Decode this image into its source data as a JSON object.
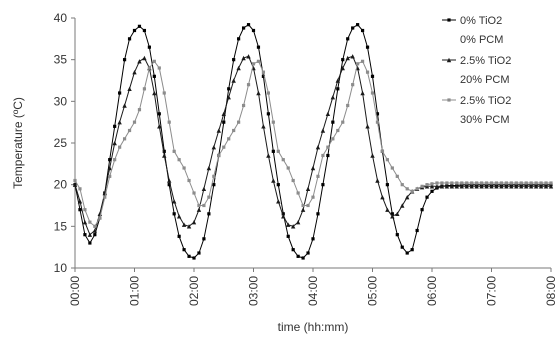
{
  "chart_data": {
    "type": "line",
    "xlabel": "time (hh:mm)",
    "ylabel": "Temperature (ºC)",
    "ylim": [
      10,
      40
    ],
    "xlim_minutes": [
      0,
      480
    ],
    "yticks": [
      10,
      15,
      20,
      25,
      30,
      35,
      40
    ],
    "xticks": [
      "00:00",
      "01:00",
      "02:00",
      "03:00",
      "04:00",
      "05:00",
      "06:00",
      "07:00",
      "08:00"
    ],
    "grid": false,
    "legend_position": "top-right",
    "series": [
      {
        "name_lines": [
          "0%   TiO2",
          "0%   PCM"
        ],
        "marker": "square",
        "color": "#000000",
        "x": [
          "00:00",
          "00:05",
          "00:10",
          "00:15",
          "00:20",
          "00:25",
          "00:30",
          "00:35",
          "00:40",
          "00:45",
          "00:50",
          "00:55",
          "01:00",
          "01:05",
          "01:10",
          "01:15",
          "01:20",
          "01:25",
          "01:30",
          "01:35",
          "01:40",
          "01:45",
          "01:50",
          "01:55",
          "02:00",
          "02:05",
          "02:10",
          "02:15",
          "02:20",
          "02:25",
          "02:30",
          "02:35",
          "02:40",
          "02:45",
          "02:50",
          "02:55",
          "03:00",
          "03:05",
          "03:10",
          "03:15",
          "03:20",
          "03:25",
          "03:30",
          "03:35",
          "03:40",
          "03:45",
          "03:50",
          "03:55",
          "04:00",
          "04:05",
          "04:10",
          "04:15",
          "04:20",
          "04:25",
          "04:30",
          "04:35",
          "04:40",
          "04:45",
          "04:50",
          "04:55",
          "05:00",
          "05:05",
          "05:10",
          "05:15",
          "05:20",
          "05:25",
          "05:30",
          "05:35",
          "05:40",
          "05:45",
          "05:50",
          "05:55",
          "06:00",
          "06:05",
          "06:10",
          "06:15",
          "06:20",
          "06:25",
          "06:30",
          "06:35",
          "06:40",
          "06:45",
          "06:50",
          "06:55",
          "07:00",
          "07:05",
          "07:10",
          "07:15",
          "07:20",
          "07:25",
          "07:30",
          "07:35",
          "07:40",
          "07:45",
          "07:50",
          "07:55",
          "08:00"
        ],
        "y": [
          20,
          17,
          14,
          13,
          14,
          16,
          19,
          23,
          27,
          31,
          35,
          37.5,
          38.5,
          39,
          38.5,
          36.5,
          33,
          28.5,
          24,
          20,
          16.5,
          13.8,
          12.2,
          11.4,
          11.2,
          11.8,
          13.5,
          16.5,
          20,
          23.5,
          27.5,
          31.5,
          35,
          37.5,
          38.8,
          39.2,
          38.5,
          36.5,
          33,
          28.5,
          24,
          20,
          16.5,
          13.8,
          12.2,
          11.4,
          11.2,
          11.8,
          13.5,
          16.5,
          20,
          23.5,
          27.5,
          31.5,
          35,
          37.5,
          38.8,
          39.2,
          38.5,
          36.5,
          33,
          28.5,
          24,
          20,
          16.5,
          14,
          12.5,
          11.8,
          12.2,
          14.5,
          17,
          18.5,
          19.2,
          19.6,
          19.8,
          19.9,
          19.9,
          19.9,
          20,
          20,
          20,
          20,
          20,
          20,
          20,
          20,
          20,
          20,
          20,
          20,
          20,
          20,
          20,
          20,
          20,
          20,
          20
        ]
      },
      {
        "name_lines": [
          "2.5% TiO2",
          "20%  PCM"
        ],
        "marker": "triangle",
        "color": "#1a1a1a",
        "x": [
          "00:00",
          "00:05",
          "00:10",
          "00:15",
          "00:20",
          "00:25",
          "00:30",
          "00:35",
          "00:40",
          "00:45",
          "00:50",
          "00:55",
          "01:00",
          "01:05",
          "01:10",
          "01:15",
          "01:20",
          "01:25",
          "01:30",
          "01:35",
          "01:40",
          "01:45",
          "01:50",
          "01:55",
          "02:00",
          "02:05",
          "02:10",
          "02:15",
          "02:20",
          "02:25",
          "02:30",
          "02:35",
          "02:40",
          "02:45",
          "02:50",
          "02:55",
          "03:00",
          "03:05",
          "03:10",
          "03:15",
          "03:20",
          "03:25",
          "03:30",
          "03:35",
          "03:40",
          "03:45",
          "03:50",
          "03:55",
          "04:00",
          "04:05",
          "04:10",
          "04:15",
          "04:20",
          "04:25",
          "04:30",
          "04:35",
          "04:40",
          "04:45",
          "04:50",
          "04:55",
          "05:00",
          "05:05",
          "05:10",
          "05:15",
          "05:20",
          "05:25",
          "05:30",
          "05:35",
          "05:40",
          "05:45",
          "05:50",
          "05:55",
          "06:00",
          "06:05",
          "06:10",
          "06:15",
          "06:20",
          "06:25",
          "06:30",
          "06:35",
          "06:40",
          "06:45",
          "06:50",
          "06:55",
          "07:00",
          "07:05",
          "07:10",
          "07:15",
          "07:20",
          "07:25",
          "07:30",
          "07:35",
          "07:40",
          "07:45",
          "07:50",
          "07:55",
          "08:00"
        ],
        "y": [
          20,
          18,
          15.5,
          14,
          14.5,
          16.5,
          19,
          22,
          25,
          27.5,
          29.5,
          31.5,
          33.5,
          34.8,
          35.2,
          34,
          31,
          27,
          23.5,
          20.5,
          18,
          16.2,
          15.2,
          15,
          15.5,
          17,
          19.5,
          22,
          24.5,
          26.5,
          28.5,
          30.5,
          32.5,
          34,
          35.2,
          35.4,
          34,
          31,
          27,
          23.5,
          20.5,
          18,
          16.2,
          15.2,
          15,
          15.5,
          17,
          19.5,
          22,
          24.5,
          26.5,
          28.5,
          30.5,
          32.5,
          34,
          35.2,
          35.4,
          34,
          31,
          27,
          23.5,
          20.5,
          18.5,
          17,
          16.2,
          16.5,
          17.5,
          18.5,
          19.2,
          19.5,
          19.7,
          19.8,
          19.8,
          19.8,
          19.8,
          19.8,
          19.8,
          19.8,
          19.8,
          19.8,
          19.8,
          19.8,
          19.8,
          19.8,
          19.8,
          19.8,
          19.8,
          19.8,
          19.8,
          19.8,
          19.8,
          19.8,
          19.8,
          19.8,
          19.8,
          19.8,
          19.8
        ]
      },
      {
        "name_lines": [
          "2.5% TiO2",
          "30%  PCM"
        ],
        "marker": "square",
        "color": "#8c8c8c",
        "x": [
          "00:00",
          "00:05",
          "00:10",
          "00:15",
          "00:20",
          "00:25",
          "00:30",
          "00:35",
          "00:40",
          "00:45",
          "00:50",
          "00:55",
          "01:00",
          "01:05",
          "01:10",
          "01:15",
          "01:20",
          "01:25",
          "01:30",
          "01:35",
          "01:40",
          "01:45",
          "01:50",
          "01:55",
          "02:00",
          "02:05",
          "02:10",
          "02:15",
          "02:20",
          "02:25",
          "02:30",
          "02:35",
          "02:40",
          "02:45",
          "02:50",
          "02:55",
          "03:00",
          "03:05",
          "03:10",
          "03:15",
          "03:20",
          "03:25",
          "03:30",
          "03:35",
          "03:40",
          "03:45",
          "03:50",
          "03:55",
          "04:00",
          "04:05",
          "04:10",
          "04:15",
          "04:20",
          "04:25",
          "04:30",
          "04:35",
          "04:40",
          "04:45",
          "04:50",
          "04:55",
          "05:00",
          "05:05",
          "05:10",
          "05:15",
          "05:20",
          "05:25",
          "05:30",
          "05:35",
          "05:40",
          "05:45",
          "05:50",
          "05:55",
          "06:00",
          "06:05",
          "06:10",
          "06:15",
          "06:20",
          "06:25",
          "06:30",
          "06:35",
          "06:40",
          "06:45",
          "06:50",
          "06:55",
          "07:00",
          "07:05",
          "07:10",
          "07:15",
          "07:20",
          "07:25",
          "07:30",
          "07:35",
          "07:40",
          "07:45",
          "07:50",
          "07:55",
          "08:00"
        ],
        "y": [
          20.5,
          19.5,
          17,
          15.5,
          15,
          16,
          18.5,
          21,
          23,
          24.5,
          25.5,
          26.5,
          27.5,
          29,
          31.5,
          34,
          34.8,
          34,
          31,
          27.5,
          24,
          23,
          22,
          20.5,
          19,
          17.5,
          17.5,
          18.5,
          21,
          23.5,
          24.5,
          25.5,
          26.5,
          27.5,
          29.5,
          32,
          34.5,
          34.8,
          33.5,
          31,
          27.5,
          24,
          23,
          22,
          20.5,
          19,
          17.5,
          17.5,
          18.5,
          21,
          23.5,
          24.5,
          25.5,
          26.5,
          27.5,
          29.5,
          32,
          34.5,
          34.8,
          33.5,
          31,
          27.5,
          24,
          23,
          22,
          21,
          20,
          19.5,
          19.2,
          19.5,
          19.8,
          20,
          20.1,
          20.2,
          20.2,
          20.2,
          20.2,
          20.2,
          20.2,
          20.2,
          20.2,
          20.2,
          20.2,
          20.2,
          20.2,
          20.2,
          20.2,
          20.2,
          20.2,
          20.2,
          20.2,
          20.2,
          20.2,
          20.2,
          20.2,
          20.2,
          20.2
        ]
      }
    ]
  }
}
